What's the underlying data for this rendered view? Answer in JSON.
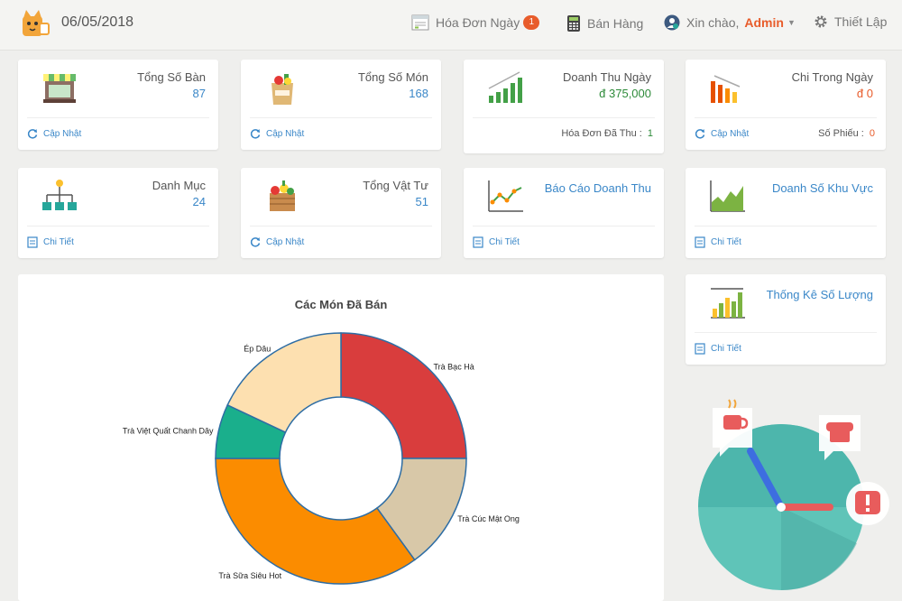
{
  "header": {
    "date": "06/05/2018",
    "nav": {
      "invoices_label": "Hóa Đơn Ngày",
      "invoices_badge": "1",
      "sales_label": "Bán Hàng",
      "greeting": "Xin chào,",
      "user": "Admin",
      "settings_label": "Thiết Lập"
    }
  },
  "cards": {
    "tables": {
      "title": "Tổng Số Bàn",
      "value": "87",
      "link": "Cập Nhật"
    },
    "dishes": {
      "title": "Tổng Số Món",
      "value": "168",
      "link": "Cập Nhật"
    },
    "revenue": {
      "title": "Doanh Thu Ngày",
      "value": "đ 375,000",
      "footer_label": "Hóa Đơn Đã Thu :",
      "footer_value": "1"
    },
    "expense": {
      "title": "Chi Trong Ngày",
      "value": "đ 0",
      "link": "Cập Nhật",
      "footer_label": "Số Phiếu :",
      "footer_value": "0"
    },
    "category": {
      "title": "Danh Mục",
      "value": "24",
      "link": "Chi Tiết"
    },
    "supplies": {
      "title": "Tổng Vật Tư",
      "value": "51",
      "link": "Cập Nhật"
    },
    "revenue_report": {
      "title": "Báo Cáo Doanh Thu",
      "link": "Chi Tiết"
    },
    "area_sales": {
      "title": "Doanh Số Khu Vực",
      "link": "Chi Tiết"
    },
    "quantity_stats": {
      "title": "Thống Kê Số Lượng",
      "link": "Chi Tiết"
    }
  },
  "colors": {
    "accent": "#3a87c8",
    "orange": "#e85c2b",
    "green": "#2e8b3a"
  },
  "chart_data": {
    "type": "pie",
    "title": "Các Món Đã Bán",
    "donut": true,
    "slices": [
      {
        "label": "Trà Bạc Hà",
        "value": 25,
        "color": "#d93d3d"
      },
      {
        "label": "Trà Cúc Mật Ong",
        "value": 15,
        "color": "#d8c8a8"
      },
      {
        "label": "Trà Sữa Siêu Hot",
        "value": 35,
        "color": "#fb8c00"
      },
      {
        "label": "Trà Việt Quất Chanh Dây",
        "value": 7,
        "color": "#1aaf8c"
      },
      {
        "label": "Ép Dâu",
        "value": 18,
        "color": "#fde0b0"
      }
    ]
  }
}
